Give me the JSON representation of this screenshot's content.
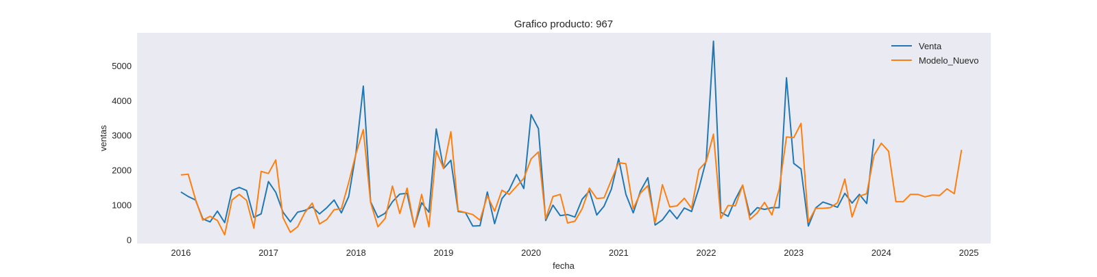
{
  "chart_data": {
    "type": "line",
    "title": "Grafico producto: 967",
    "xlabel": "fecha",
    "ylabel": "ventas",
    "x_axis": "monthly dates",
    "xlim": [
      "2015-07",
      "2025-04"
    ],
    "ylim": [
      -100,
      5950
    ],
    "x_ticks": [
      "2016",
      "2017",
      "2018",
      "2019",
      "2020",
      "2021",
      "2022",
      "2023",
      "2024",
      "2025"
    ],
    "y_ticks": [
      0,
      1000,
      2000,
      3000,
      4000,
      5000
    ],
    "grid": false,
    "background": "#eaeaf2",
    "legend_position": "top-right",
    "series": [
      {
        "name": "Venta",
        "color": "#1f77b4",
        "start": "2016-01",
        "values": [
          1380,
          1250,
          1150,
          610,
          520,
          830,
          500,
          1420,
          1510,
          1420,
          650,
          750,
          1680,
          1370,
          800,
          520,
          800,
          850,
          950,
          750,
          930,
          1150,
          780,
          1250,
          2500,
          4420,
          1100,
          650,
          770,
          1100,
          1320,
          1340,
          380,
          1070,
          800,
          3190,
          2050,
          2290,
          820,
          790,
          400,
          410,
          1380,
          470,
          1190,
          1440,
          1880,
          1480,
          3600,
          3200,
          560,
          1000,
          700,
          730,
          660,
          1170,
          1410,
          720,
          970,
          1460,
          2340,
          1310,
          780,
          1410,
          1790,
          430,
          580,
          860,
          610,
          920,
          820,
          1490,
          2290,
          5710,
          800,
          680,
          1170,
          1570,
          710,
          930,
          880,
          930,
          930,
          4660,
          2200,
          2040,
          400,
          920,
          1090,
          1020,
          940,
          1340,
          1060,
          1310,
          1050,
          2900
        ]
      },
      {
        "name": "Modelo_Nuevo",
        "color": "#ff7f0e",
        "start": "2016-01",
        "values": [
          1870,
          1890,
          1170,
          570,
          680,
          560,
          150,
          1150,
          1310,
          1140,
          340,
          1970,
          1910,
          2300,
          640,
          220,
          380,
          790,
          1060,
          460,
          590,
          870,
          900,
          1650,
          2480,
          3170,
          1080,
          380,
          620,
          1550,
          760,
          1490,
          370,
          1310,
          380,
          2560,
          2050,
          3110,
          840,
          790,
          730,
          570,
          1270,
          830,
          1430,
          1310,
          1540,
          1770,
          2330,
          2530,
          610,
          1250,
          1310,
          490,
          540,
          900,
          1490,
          1190,
          1210,
          1720,
          2220,
          2190,
          900,
          1350,
          1560,
          500,
          1590,
          950,
          980,
          1200,
          910,
          2020,
          2250,
          3040,
          620,
          990,
          980,
          1580,
          590,
          780,
          1080,
          720,
          1460,
          2960,
          2940,
          3350,
          520,
          910,
          910,
          930,
          1070,
          1750,
          660,
          1260,
          1330,
          2430,
          2780,
          2550,
          1100,
          1100,
          1310,
          1310,
          1240,
          1290,
          1280,
          1470,
          1330,
          2590
        ]
      }
    ]
  }
}
